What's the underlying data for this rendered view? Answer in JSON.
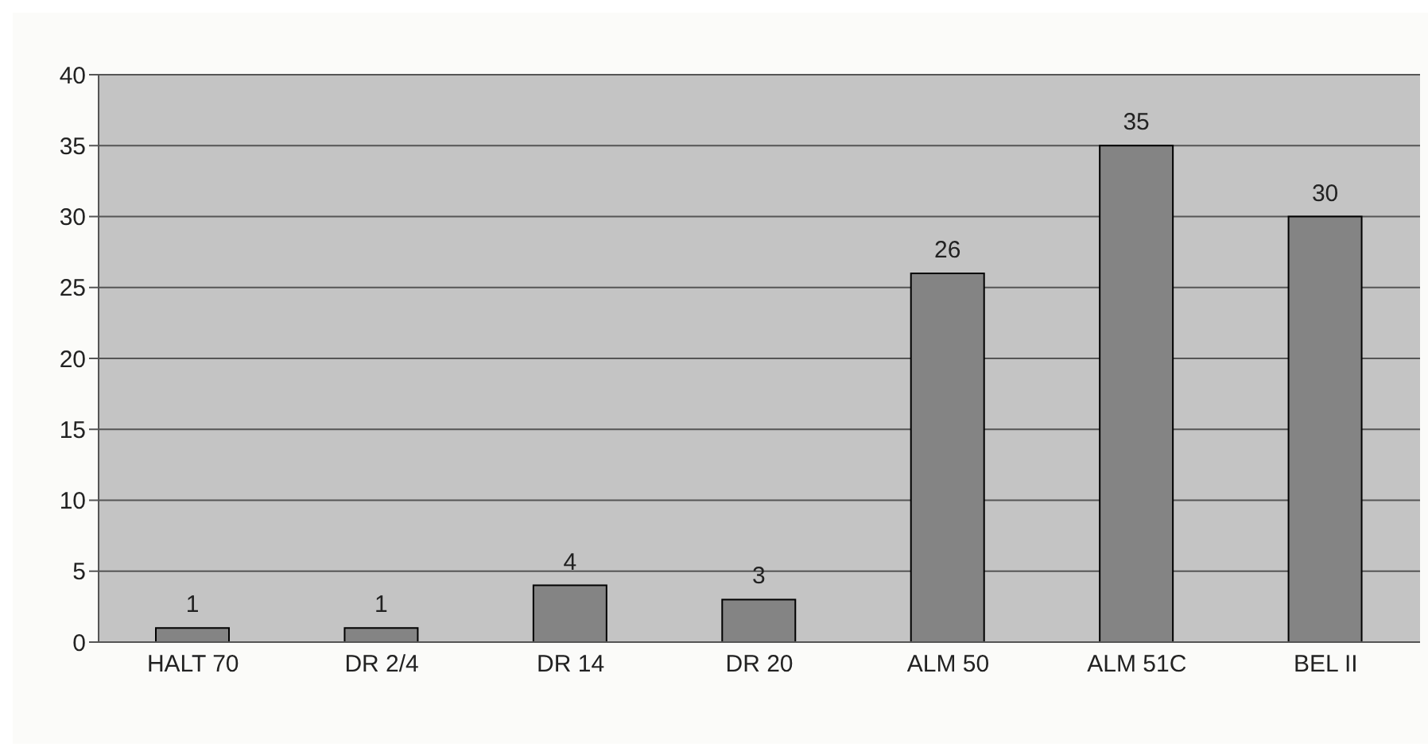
{
  "chart_data": {
    "type": "bar",
    "categories": [
      "HALT 70",
      "DR 2/4",
      "DR 14",
      "DR 20",
      "ALM 50",
      "ALM 51C",
      "BEL II"
    ],
    "values": [
      1,
      1,
      4,
      3,
      26,
      35,
      30
    ],
    "color": "#848484",
    "ylim": [
      0,
      40
    ],
    "yticks": [
      0,
      5,
      10,
      15,
      20,
      25,
      30,
      35,
      40
    ],
    "grid": "y",
    "data_labels": true
  }
}
